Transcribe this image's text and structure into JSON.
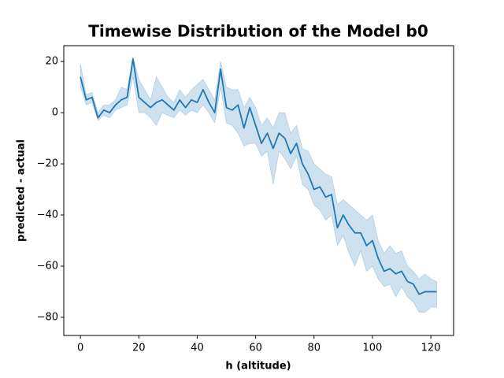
{
  "chart_data": {
    "type": "line",
    "title": "Timewise Distribution of the Model b0",
    "x_label": "h (altitude)",
    "y_label": "predicted - actual",
    "x": [
      0,
      2,
      4,
      6,
      8,
      10,
      12,
      14,
      16,
      18,
      20,
      22,
      24,
      26,
      28,
      30,
      32,
      34,
      36,
      38,
      40,
      42,
      44,
      46,
      48,
      50,
      52,
      54,
      56,
      58,
      60,
      62,
      64,
      66,
      68,
      70,
      72,
      74,
      76,
      78,
      80,
      82,
      84,
      86,
      88,
      90,
      92,
      94,
      96,
      98,
      100,
      102,
      104,
      106,
      108,
      110,
      112,
      114,
      116,
      118,
      120,
      122
    ],
    "series": [
      {
        "color": "#1f77b4",
        "values": [
          14,
          5,
          6,
          -2,
          1,
          0,
          3,
          5,
          6,
          21,
          6,
          4,
          2,
          4,
          5,
          3,
          1,
          5,
          2,
          5,
          4,
          9,
          4,
          0,
          17,
          2,
          1,
          3,
          -6,
          2,
          -5,
          -12,
          -8,
          -14,
          -8,
          -10,
          -16,
          -12,
          -20,
          -24,
          -30,
          -29,
          -33,
          -32,
          -45,
          -40,
          -44,
          -47,
          -47,
          -52,
          -50,
          -57,
          -62,
          -61,
          -63,
          -62,
          -66,
          -67,
          -71,
          -70,
          -70,
          -70
        ],
        "ci_lower": [
          10,
          3,
          4,
          -3,
          -1,
          -2,
          1,
          2,
          3,
          14,
          0,
          0,
          -2,
          -5,
          0,
          -1,
          -2,
          1,
          -1,
          1,
          0,
          3,
          0,
          -4,
          10,
          -4,
          -5,
          -8,
          -13,
          -12,
          -12,
          -17,
          -15,
          -28,
          -15,
          -18,
          -22,
          -17,
          -28,
          -30,
          -36,
          -38,
          -42,
          -40,
          -52,
          -48,
          -55,
          -60,
          -54,
          -62,
          -60,
          -65,
          -68,
          -67,
          -72,
          -68,
          -72,
          -74,
          -78,
          -78,
          -76,
          -76
        ],
        "ci_upper": [
          19,
          7,
          8,
          0,
          3,
          3,
          5,
          10,
          9,
          22,
          13,
          9,
          5,
          14,
          10,
          6,
          4,
          9,
          6,
          9,
          11,
          13,
          9,
          5,
          20,
          10,
          9,
          9,
          2,
          6,
          2,
          -5,
          -2,
          -6,
          0,
          0,
          -8,
          -5,
          -14,
          -15,
          -20,
          -22,
          -24,
          -25,
          -36,
          -34,
          -36,
          -38,
          -40,
          -42,
          -40,
          -50,
          -55,
          -52,
          -55,
          -54,
          -60,
          -62,
          -65,
          -63,
          -65,
          -66
        ]
      }
    ],
    "xlim": [
      -5.7,
      127.8
    ],
    "ylim": [
      -87.1,
      26.2
    ],
    "xticks": [
      0,
      20,
      40,
      60,
      80,
      100,
      120
    ],
    "yticks": [
      {
        "value": -80,
        "label": "−80"
      },
      {
        "value": -60,
        "label": "−60"
      },
      {
        "value": -40,
        "label": "−40"
      },
      {
        "value": -20,
        "label": "−20"
      },
      0,
      20
    ],
    "grid": false
  }
}
